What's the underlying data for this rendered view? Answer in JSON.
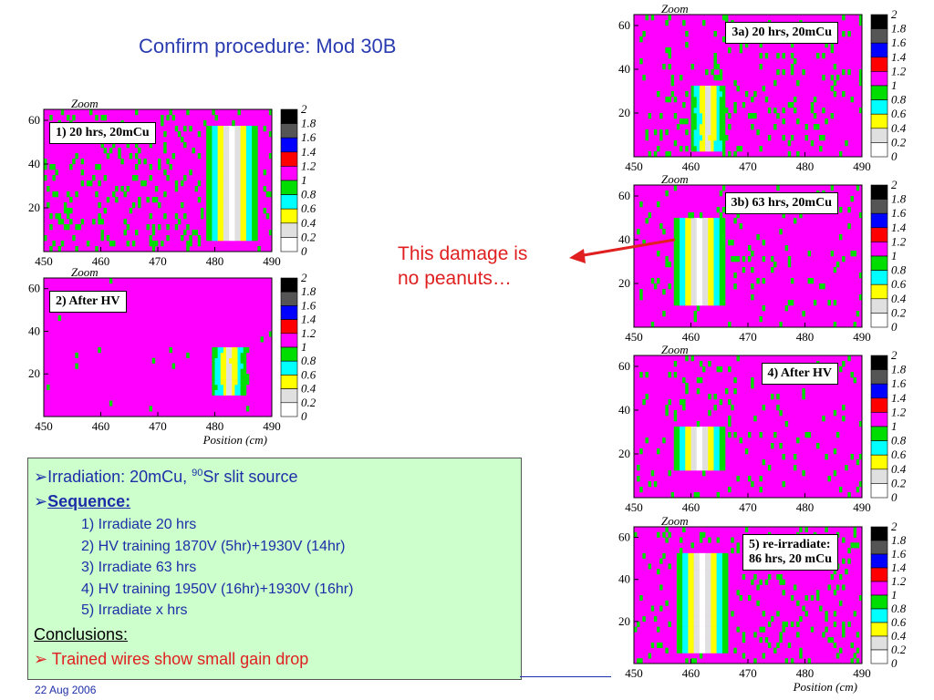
{
  "title": "Confirm procedure: Mod 30B",
  "annotation": "This damage is\nno peanuts…",
  "footer": {
    "date": "22 Aug 2006"
  },
  "info": {
    "line1_prefix": "Irradiation: 20mCu, ",
    "line1_sup": "90",
    "line1_suffix": "Sr slit source",
    "sequence_heading": "Sequence:",
    "steps": [
      "1) Irradiate 20 hrs",
      "2) HV training 1870V (5hr)+1930V (14hr)",
      "3) Irradiate 63 hrs",
      "4) HV training 1950V (16hr)+1930V (16hr)",
      "5) Irradiate x hrs"
    ],
    "conclusions_heading": "Conclusions:",
    "conclusion": "Trained wires show small gain drop",
    "bullet_glyph": "➢"
  },
  "colors": {
    "title": "#2a3cb0",
    "annotation": "#e02020",
    "arrow": "#e02020",
    "info_bg": "#ccffcc",
    "info_text": "#1e2ea8",
    "conclusion": "#e02020",
    "background_level": "#ff00ff"
  },
  "chart_data": [
    {
      "type": "heatmap",
      "label": "1) 20 hrs, 20mCu",
      "zoom_label": "Zoom",
      "xlabel": "",
      "xlim": [
        450,
        490
      ],
      "ylim": [
        0,
        65
      ],
      "xticks": [
        450,
        460,
        470,
        480,
        490
      ],
      "yticks": [
        20,
        40,
        60
      ],
      "scale_ticks": [
        "2",
        "1.8",
        "1.6",
        "1.4",
        "1.2",
        "1",
        "0.8",
        "0.6",
        "0.4",
        "0.2",
        "0"
      ],
      "scale_colors": [
        "#000000",
        "#555555",
        "#0000ff",
        "#ff0000",
        "#ff00ff",
        "#00dd00",
        "#00ffff",
        "#ffff00",
        "#e0e0e0",
        "#ffffff"
      ],
      "background_level": 1.1,
      "hotspot": {
        "x_center": 483,
        "x_halfwidth": 5,
        "y_range": [
          5,
          58
        ],
        "min_level": 0.1
      },
      "noise_density": 0.12
    },
    {
      "type": "heatmap",
      "label": "2) After HV",
      "zoom_label": "Zoom",
      "xlabel": "Position (cm)",
      "xlim": [
        450,
        490
      ],
      "ylim": [
        0,
        65
      ],
      "xticks": [
        450,
        460,
        470,
        480,
        490
      ],
      "yticks": [
        20,
        40,
        60
      ],
      "scale_ticks": [
        "2",
        "1.8",
        "1.6",
        "1.4",
        "1.2",
        "1",
        "0.8",
        "0.6",
        "0.4",
        "0.2",
        "0"
      ],
      "scale_colors": [
        "#000000",
        "#555555",
        "#0000ff",
        "#ff0000",
        "#ff00ff",
        "#00dd00",
        "#00ffff",
        "#ffff00",
        "#e0e0e0",
        "#ffffff"
      ],
      "background_level": 1.1,
      "hotspot": {
        "x_center": 482.5,
        "x_halfwidth": 3.5,
        "y_range": [
          10,
          33
        ],
        "min_level": 0.3
      },
      "noise_density": 0.01
    },
    {
      "type": "heatmap",
      "label": "3a) 20 hrs, 20mCu",
      "zoom_label": "Zoom",
      "xlabel": "",
      "xlim": [
        450,
        490
      ],
      "ylim": [
        0,
        65
      ],
      "xticks": [
        450,
        460,
        470,
        480,
        490
      ],
      "yticks": [
        20,
        40,
        60
      ],
      "scale_ticks": [
        "2",
        "1.8",
        "1.6",
        "1.4",
        "1.2",
        "1",
        "0.8",
        "0.6",
        "0.4",
        "0.2",
        "0"
      ],
      "scale_colors": [
        "#000000",
        "#555555",
        "#0000ff",
        "#ff0000",
        "#ff00ff",
        "#00dd00",
        "#00ffff",
        "#ffff00",
        "#e0e0e0",
        "#ffffff"
      ],
      "background_level": 1.1,
      "hotspot": {
        "x_center": 463,
        "x_halfwidth": 3.5,
        "y_range": [
          3,
          33
        ],
        "min_level": 0.3
      },
      "noise_density": 0.09
    },
    {
      "type": "heatmap",
      "label": "3b) 63 hrs, 20mCu",
      "zoom_label": "Zoom",
      "xlabel": "",
      "xlim": [
        450,
        490
      ],
      "ylim": [
        0,
        65
      ],
      "xticks": [
        450,
        460,
        470,
        480,
        490
      ],
      "yticks": [
        20,
        40,
        60
      ],
      "scale_ticks": [
        "2",
        "1.8",
        "1.6",
        "1.4",
        "1.2",
        "1",
        "0.8",
        "0.6",
        "0.4",
        "0.2",
        "0"
      ],
      "scale_colors": [
        "#000000",
        "#555555",
        "#0000ff",
        "#ff0000",
        "#ff00ff",
        "#00dd00",
        "#00ffff",
        "#ffff00",
        "#e0e0e0",
        "#ffffff"
      ],
      "background_level": 1.1,
      "hotspot": {
        "x_center": 461.5,
        "x_halfwidth": 5,
        "y_range": [
          10,
          50
        ],
        "min_level": 0.1
      },
      "noise_density": 0.06
    },
    {
      "type": "heatmap",
      "label": "4) After HV",
      "zoom_label": "Zoom",
      "xlabel": "",
      "xlim": [
        450,
        490
      ],
      "ylim": [
        0,
        65
      ],
      "xticks": [
        450,
        460,
        470,
        480,
        490
      ],
      "yticks": [
        20,
        40,
        60
      ],
      "scale_ticks": [
        "2",
        "1.8",
        "1.6",
        "1.4",
        "1.2",
        "1",
        "0.8",
        "0.6",
        "0.4",
        "0.2",
        "0"
      ],
      "scale_colors": [
        "#000000",
        "#555555",
        "#0000ff",
        "#ff0000",
        "#ff00ff",
        "#00dd00",
        "#00ffff",
        "#ffff00",
        "#e0e0e0",
        "#ffffff"
      ],
      "background_level": 1.1,
      "hotspot": {
        "x_center": 461.5,
        "x_halfwidth": 5,
        "y_range": [
          12,
          33
        ],
        "min_level": 0.1
      },
      "noise_density": 0.07
    },
    {
      "type": "heatmap",
      "label": "5) re-irradiate:\n86 hrs, 20 mCu",
      "zoom_label": "Zoom",
      "xlabel": "Position (cm)",
      "xlim": [
        450,
        490
      ],
      "ylim": [
        0,
        65
      ],
      "xticks": [
        450,
        460,
        470,
        480,
        490
      ],
      "yticks": [
        20,
        40,
        60
      ],
      "scale_ticks": [
        "2",
        "1.8",
        "1.6",
        "1.4",
        "1.2",
        "1",
        "0.8",
        "0.6",
        "0.4",
        "0.2",
        "0"
      ],
      "scale_colors": [
        "#000000",
        "#555555",
        "#0000ff",
        "#ff0000",
        "#ff00ff",
        "#00dd00",
        "#00ffff",
        "#ffff00",
        "#e0e0e0",
        "#ffffff"
      ],
      "background_level": 1.1,
      "hotspot": {
        "x_center": 462,
        "x_halfwidth": 5,
        "y_range": [
          5,
          52
        ],
        "min_level": 0.1
      },
      "noise_density": 0.1
    }
  ]
}
